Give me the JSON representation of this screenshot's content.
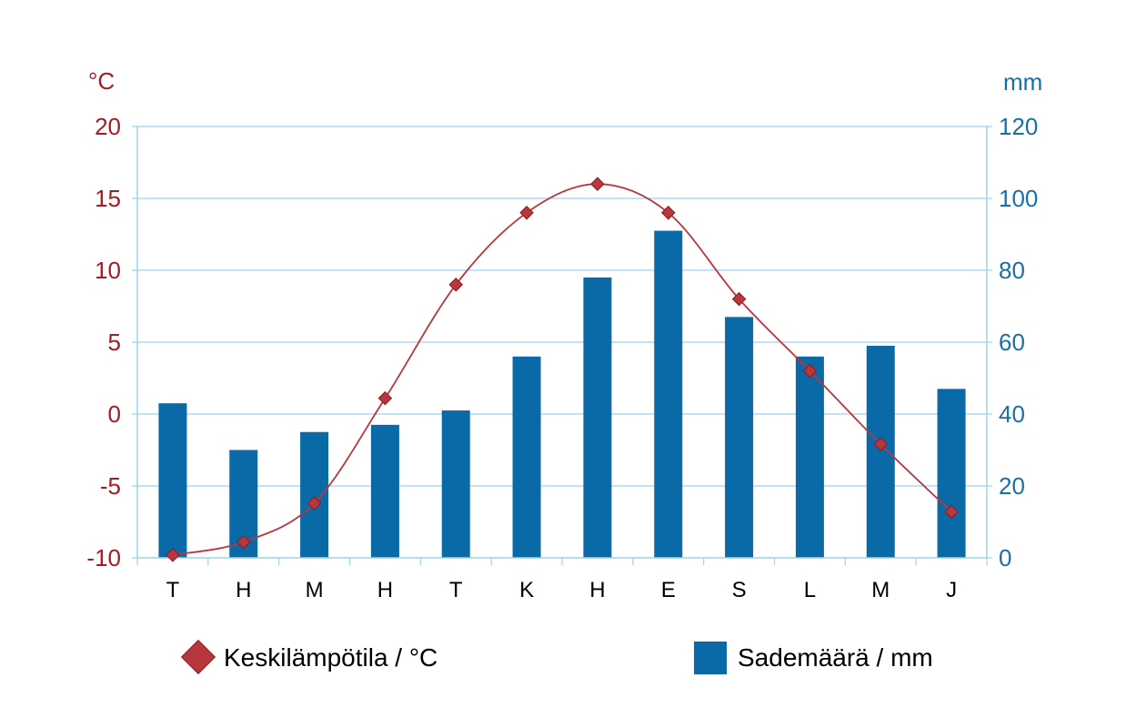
{
  "chart_data": {
    "type": "bar",
    "categories": [
      "T",
      "H",
      "M",
      "H",
      "T",
      "K",
      "H",
      "E",
      "S",
      "L",
      "M",
      "J"
    ],
    "series": [
      {
        "name": "Sademäärä / mm",
        "type": "bar",
        "axis": "right",
        "color": "#0a6aa8",
        "values": [
          43,
          30,
          35,
          37,
          41,
          56,
          78,
          91,
          67,
          56,
          59,
          47
        ]
      },
      {
        "name": "Keskilämpötila / °C",
        "type": "line",
        "axis": "left",
        "color": "#b8373c",
        "values": [
          -9.8,
          -8.9,
          -6.2,
          1.1,
          9.0,
          14.0,
          16.0,
          14.0,
          8.0,
          3.0,
          -2.1,
          -6.8
        ]
      }
    ],
    "y_left": {
      "unit": "°C",
      "lim": [
        -10,
        20
      ],
      "ticks": [
        "-10",
        "-5",
        "0",
        "5",
        "10",
        "15",
        "20"
      ]
    },
    "y_right": {
      "unit": "mm",
      "lim": [
        0,
        120
      ],
      "ticks": [
        "0",
        "20",
        "40",
        "60",
        "80",
        "100",
        "120"
      ]
    },
    "grid": true,
    "legend": {
      "position": "bottom",
      "items": [
        "Keskilämpötila / °C",
        "Sademäärä / mm"
      ]
    },
    "colors": {
      "left_axis": "#a31d24",
      "right_axis": "#1a6fa6",
      "grid": "#9dd3ea"
    }
  }
}
